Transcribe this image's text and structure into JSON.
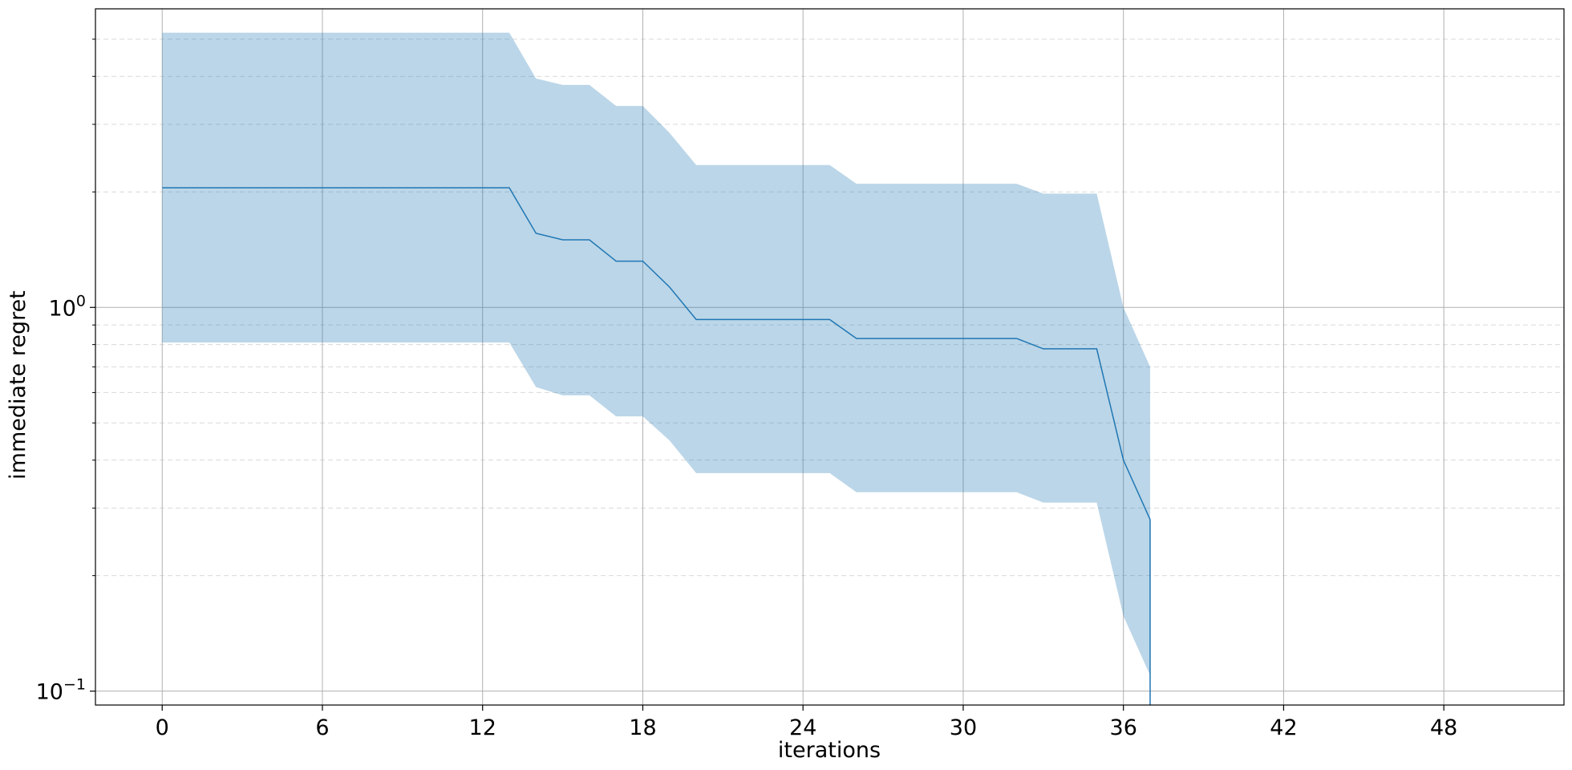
{
  "chart_data": {
    "type": "line",
    "title": "",
    "xlabel": "iterations",
    "ylabel": "immediate regret",
    "yscale": "log",
    "xlim": [
      -2.5,
      52.5
    ],
    "ylim": [
      0.092,
      6.0
    ],
    "x_ticks": [
      0,
      6,
      12,
      18,
      24,
      30,
      36,
      42,
      48
    ],
    "x_tick_labels": [
      "0",
      "6",
      "12",
      "18",
      "24",
      "30",
      "36",
      "42",
      "48"
    ],
    "y_ticks": [
      {
        "value": 1.0,
        "base": "10",
        "exp": "0"
      },
      {
        "value": 0.1,
        "base": "10",
        "exp": "−1"
      }
    ],
    "grid": {
      "major": true,
      "minor_y": true,
      "minor_style": "dashed"
    },
    "series_color": "#1f77b4",
    "band_color": "#1f77b4",
    "band_opacity": 0.3,
    "x": [
      0,
      1,
      2,
      3,
      4,
      5,
      6,
      7,
      8,
      9,
      10,
      11,
      12,
      13,
      14,
      15,
      16,
      17,
      18,
      19,
      20,
      21,
      22,
      23,
      24,
      25,
      26,
      27,
      28,
      29,
      30,
      31,
      32,
      33,
      34,
      35,
      36,
      37
    ],
    "mean": [
      2.05,
      2.05,
      2.05,
      2.05,
      2.05,
      2.05,
      2.05,
      2.05,
      2.05,
      2.05,
      2.05,
      2.05,
      2.05,
      2.05,
      1.56,
      1.5,
      1.5,
      1.32,
      1.32,
      1.13,
      0.93,
      0.93,
      0.93,
      0.93,
      0.93,
      0.93,
      0.83,
      0.83,
      0.83,
      0.83,
      0.83,
      0.83,
      0.83,
      0.78,
      0.78,
      0.78,
      0.4,
      0.28
    ],
    "upper": [
      5.2,
      5.2,
      5.2,
      5.2,
      5.2,
      5.2,
      5.2,
      5.2,
      5.2,
      5.2,
      5.2,
      5.2,
      5.2,
      5.2,
      3.95,
      3.8,
      3.8,
      3.35,
      3.35,
      2.85,
      2.35,
      2.35,
      2.35,
      2.35,
      2.35,
      2.35,
      2.1,
      2.1,
      2.1,
      2.1,
      2.1,
      2.1,
      2.1,
      1.98,
      1.98,
      1.98,
      1.0,
      0.7
    ],
    "lower": [
      0.81,
      0.81,
      0.81,
      0.81,
      0.81,
      0.81,
      0.81,
      0.81,
      0.81,
      0.81,
      0.81,
      0.81,
      0.81,
      0.81,
      0.62,
      0.59,
      0.59,
      0.52,
      0.52,
      0.45,
      0.37,
      0.37,
      0.37,
      0.37,
      0.37,
      0.37,
      0.33,
      0.33,
      0.33,
      0.33,
      0.33,
      0.33,
      0.33,
      0.31,
      0.31,
      0.31,
      0.157,
      0.11
    ],
    "drop_to_bottom_at_x": 37
  }
}
